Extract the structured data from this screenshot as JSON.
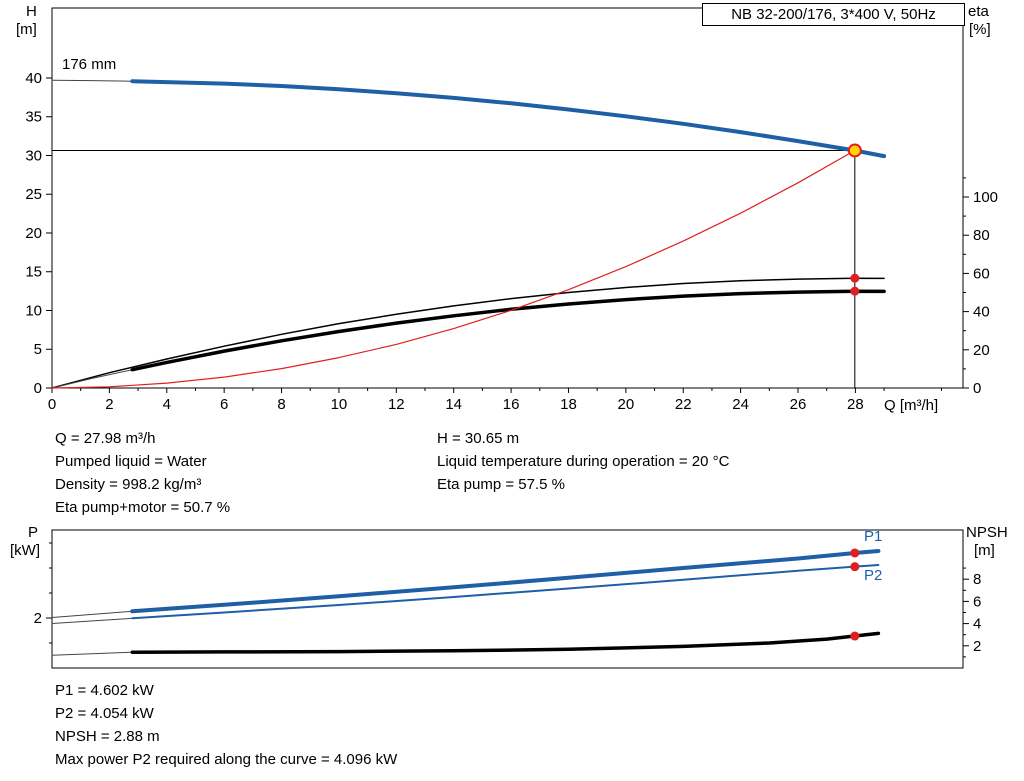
{
  "axis_labels": {
    "h": "H",
    "h_unit": "[m]",
    "eta": "eta",
    "eta_unit": "[%]",
    "q": "Q [m³/h]",
    "p": "P",
    "p_unit": "[kW]",
    "npsh": "NPSH",
    "npsh_unit": "[m]"
  },
  "curve_labels": {
    "impeller": "176 mm",
    "p1": "P1",
    "p2": "P2"
  },
  "annotations": {
    "top_left": [
      "Q = 27.98 m³/h",
      "Pumped liquid = Water",
      "Density = 998.2 kg/m³",
      "Eta pump+motor = 50.7 %"
    ],
    "top_right": [
      "H = 30.65 m",
      "Liquid temperature during operation = 20 °C",
      "Eta pump = 57.5 %"
    ],
    "bottom": [
      "P1 = 4.602 kW",
      "P2 = 4.054 kW",
      "NPSH = 2.88 m",
      "Max power P2 required along the curve = 4.096 kW"
    ]
  },
  "colors": {
    "curve_blue": "#1f5fa6",
    "curve_red": "#e02020",
    "curve_black": "#000000",
    "duty_point_fill": "#ffd400"
  },
  "chart_data": [
    {
      "type": "line",
      "title": "NB 32-200/176, 3*400 V, 50Hz",
      "x_axis": {
        "label": "Q [m³/h]",
        "min": 0,
        "max": 31.75,
        "ticks": [
          0,
          2,
          4,
          6,
          8,
          10,
          12,
          14,
          16,
          18,
          20,
          22,
          24,
          26,
          28
        ],
        "minor": [
          1,
          3,
          5,
          7,
          9,
          11,
          13,
          15,
          17,
          19,
          21,
          23,
          25,
          27,
          29,
          31
        ]
      },
      "y_left": {
        "label": "H [m]",
        "min": 0,
        "max": 49,
        "ticks": [
          0,
          5,
          10,
          15,
          20,
          25,
          30,
          35,
          40
        ]
      },
      "y_right": {
        "label": "eta [%]",
        "min": 0,
        "max": 199,
        "ticks": [
          0,
          20,
          40,
          60,
          80,
          100
        ],
        "minor": [
          10,
          30,
          50,
          70,
          90,
          110
        ]
      },
      "crosshair": {
        "x": 27.98,
        "y": 30.65
      },
      "series": [
        {
          "name": "eta-pump",
          "axis": "right",
          "color": "#000000",
          "width": 1.5,
          "points": [
            [
              0,
              0
            ],
            [
              2,
              8
            ],
            [
              4,
              15.2
            ],
            [
              6,
              21.9
            ],
            [
              8,
              28.1
            ],
            [
              10,
              33.7
            ],
            [
              12,
              38.6
            ],
            [
              14,
              43
            ],
            [
              16,
              46.8
            ],
            [
              18,
              50
            ],
            [
              20,
              52.6
            ],
            [
              22,
              54.7
            ],
            [
              24,
              56.1
            ],
            [
              26,
              57
            ],
            [
              27.98,
              57.5
            ],
            [
              29,
              57.4
            ]
          ]
        },
        {
          "name": "eta-pump-motor-lead",
          "axis": "right",
          "color": "#444444",
          "width": 1,
          "points": [
            [
              0,
              0
            ],
            [
              1.4,
              5
            ],
            [
              2.8,
              9.6
            ]
          ]
        },
        {
          "name": "eta-pump-motor",
          "axis": "right",
          "color": "#000000",
          "width": 3.5,
          "points": [
            [
              2.8,
              9.6
            ],
            [
              4,
              13.4
            ],
            [
              6,
              19.3
            ],
            [
              8,
              24.7
            ],
            [
              10,
              29.6
            ],
            [
              12,
              34
            ],
            [
              14,
              37.8
            ],
            [
              16,
              41.2
            ],
            [
              18,
              44
            ],
            [
              20,
              46.3
            ],
            [
              22,
              48.1
            ],
            [
              24,
              49.4
            ],
            [
              26,
              50.2
            ],
            [
              27.98,
              50.7
            ],
            [
              29,
              50.6
            ]
          ]
        },
        {
          "name": "system-curve",
          "axis": "left",
          "color": "#e02020",
          "width": 1.2,
          "points": [
            [
              0,
              0
            ],
            [
              2,
              0.16
            ],
            [
              4,
              0.63
            ],
            [
              6,
              1.41
            ],
            [
              8,
              2.5
            ],
            [
              10,
              3.92
            ],
            [
              12,
              5.63
            ],
            [
              14,
              7.67
            ],
            [
              16,
              10.02
            ],
            [
              18,
              12.68
            ],
            [
              20,
              15.66
            ],
            [
              22,
              18.95
            ],
            [
              24,
              22.55
            ],
            [
              26,
              26.47
            ],
            [
              27.98,
              30.65
            ]
          ]
        },
        {
          "name": "head-curve-lead",
          "axis": "left",
          "color": "#444444",
          "width": 1,
          "points": [
            [
              0,
              39.7
            ],
            [
              1.4,
              39.66
            ],
            [
              2.8,
              39.58
            ]
          ]
        },
        {
          "name": "head-curve",
          "axis": "left",
          "color": "#1f5fa6",
          "width": 4,
          "points": [
            [
              2.8,
              39.58
            ],
            [
              6,
              39.28
            ],
            [
              8,
              38.96
            ],
            [
              10,
              38.54
            ],
            [
              12,
              38.03
            ],
            [
              14,
              37.43
            ],
            [
              16,
              36.73
            ],
            [
              18,
              35.94
            ],
            [
              20,
              35.06
            ],
            [
              22,
              34.09
            ],
            [
              24,
              33.02
            ],
            [
              26,
              31.86
            ],
            [
              27.98,
              30.65
            ],
            [
              29,
              29.92
            ]
          ]
        }
      ],
      "markers": [
        {
          "name": "eta-pump-point",
          "axis": "right",
          "x": 27.98,
          "y": 57.5,
          "r": 4.5,
          "fill": "#e02020"
        },
        {
          "name": "eta-pump-motor-point",
          "axis": "right",
          "x": 27.98,
          "y": 50.7,
          "r": 4.5,
          "fill": "#e02020"
        },
        {
          "name": "duty-point",
          "axis": "left",
          "x": 27.98,
          "y": 30.65,
          "r": 6,
          "fill": "#ffd400",
          "stroke": "#e02020",
          "stroke_width": 2
        }
      ]
    },
    {
      "type": "line",
      "title": "",
      "x_axis": {
        "label": "",
        "min": 0,
        "max": 31.75,
        "ticks": [],
        "minor": []
      },
      "y_left": {
        "label": "P [kW]",
        "min": 0,
        "max": 5.52,
        "ticks": [
          2
        ],
        "minor": [
          1,
          3,
          4,
          5
        ]
      },
      "y_right": {
        "label": "NPSH [m]",
        "min": 0,
        "max": 12.43,
        "ticks": [
          2,
          4,
          6,
          8
        ],
        "minor": [
          1,
          3,
          5,
          7,
          9
        ]
      },
      "series": [
        {
          "name": "p1-lead",
          "axis": "left",
          "color": "#444444",
          "width": 1,
          "points": [
            [
              0,
              2.02
            ],
            [
              2.8,
              2.27
            ]
          ]
        },
        {
          "name": "p1",
          "axis": "left",
          "color": "#1f5fa6",
          "width": 4,
          "points": [
            [
              2.8,
              2.27
            ],
            [
              6,
              2.53
            ],
            [
              10,
              2.87
            ],
            [
              14,
              3.23
            ],
            [
              18,
              3.61
            ],
            [
              22,
              4.0
            ],
            [
              26,
              4.38
            ],
            [
              27.98,
              4.602
            ],
            [
              28.8,
              4.68
            ]
          ]
        },
        {
          "name": "p2-lead",
          "axis": "left",
          "color": "#444444",
          "width": 1,
          "points": [
            [
              0,
              1.78
            ],
            [
              2.8,
              1.99
            ]
          ]
        },
        {
          "name": "p2",
          "axis": "left",
          "color": "#1f5fa6",
          "width": 2,
          "points": [
            [
              2.8,
              1.99
            ],
            [
              6,
              2.22
            ],
            [
              10,
              2.52
            ],
            [
              14,
              2.84
            ],
            [
              18,
              3.18
            ],
            [
              22,
              3.53
            ],
            [
              26,
              3.89
            ],
            [
              27.98,
              4.054
            ],
            [
              28.8,
              4.12
            ]
          ]
        },
        {
          "name": "npsh-lead",
          "axis": "right",
          "color": "#444444",
          "width": 1,
          "points": [
            [
              0,
              1.15
            ],
            [
              2.8,
              1.42
            ]
          ]
        },
        {
          "name": "npsh",
          "axis": "right",
          "color": "#000000",
          "width": 3.5,
          "points": [
            [
              2.8,
              1.42
            ],
            [
              6,
              1.45
            ],
            [
              10,
              1.48
            ],
            [
              14,
              1.55
            ],
            [
              18,
              1.68
            ],
            [
              22,
              1.95
            ],
            [
              25,
              2.25
            ],
            [
              27,
              2.6
            ],
            [
              27.98,
              2.88
            ],
            [
              28.8,
              3.12
            ]
          ]
        }
      ],
      "markers": [
        {
          "name": "p1-point",
          "axis": "left",
          "x": 27.98,
          "y": 4.602,
          "r": 4.5,
          "fill": "#e02020"
        },
        {
          "name": "p2-point",
          "axis": "left",
          "x": 27.98,
          "y": 4.054,
          "r": 4.5,
          "fill": "#e02020"
        },
        {
          "name": "npsh-point",
          "axis": "right",
          "x": 27.98,
          "y": 2.88,
          "r": 4.5,
          "fill": "#e02020"
        }
      ]
    }
  ]
}
